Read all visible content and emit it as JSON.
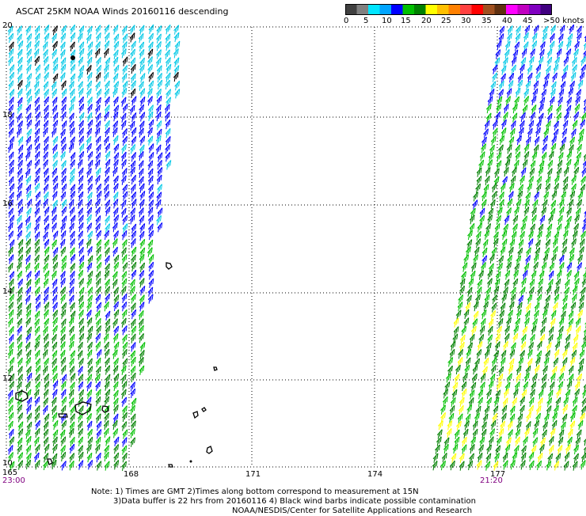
{
  "title": "ASCAT 25KM NOAA Winds 20160116 descending",
  "legend": {
    "unit_label": ">50 knots",
    "ticks": [
      "0",
      "5",
      "10",
      "15",
      "20",
      "25",
      "30",
      "35",
      "40",
      "45"
    ],
    "colors": [
      "#404040",
      "#808080",
      "#00e5ff",
      "#00a5ff",
      "#0000ff",
      "#00c000",
      "#008000",
      "#ffff00",
      "#ffc000",
      "#ff8000",
      "#ff4040",
      "#ff0000",
      "#a05020",
      "#603010",
      "#ff00ff",
      "#c000c0",
      "#8000c0",
      "#400080"
    ]
  },
  "axes": {
    "x_ticks": [
      "165",
      "168",
      "171",
      "174",
      "177"
    ],
    "y_ticks": [
      "20",
      "18",
      "16",
      "14",
      "12",
      "10"
    ],
    "times": [
      "23:00",
      "21:20"
    ]
  },
  "notes": [
    "Note: 1) Times are GMT 2)Times along bottom correspond to measurement at 15N",
    "3)Data buffer is 22 hrs from 20160116 4) Black wind barbs indicate possible contamination",
    "NOAA/NESDIS/Center for Satellite Applications and Research"
  ],
  "colors": {
    "grid": "#000000",
    "swath_light_blue": "#00c8e6",
    "swath_blue": "#0000ff",
    "swath_green_light": "#00c000",
    "swath_green_dark": "#008000",
    "swath_yellow": "#ffff00",
    "contamination": "#000000"
  }
}
